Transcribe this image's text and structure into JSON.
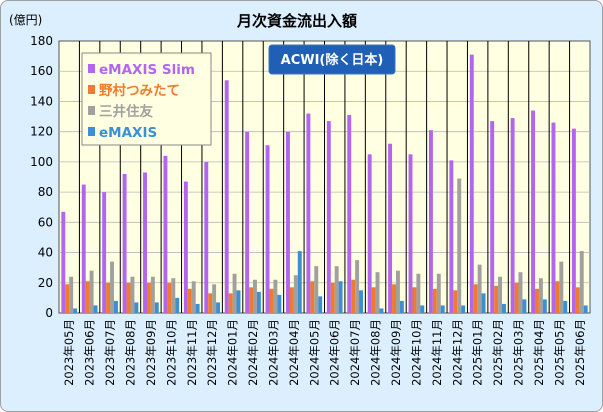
{
  "chart_data": {
    "type": "bar",
    "title": "月次資金流出入額",
    "unit_label": "(億円)",
    "annotation": "ACWI(除く日本)",
    "ylim": [
      0,
      180
    ],
    "yticks": [
      0,
      20,
      40,
      60,
      80,
      100,
      120,
      140,
      160,
      180
    ],
    "grid": true,
    "legend_position": "top-left",
    "categories": [
      "2023年05月",
      "2023年06月",
      "2023年07月",
      "2023年08月",
      "2023年09月",
      "2023年10月",
      "2023年11月",
      "2023年12月",
      "2024年01月",
      "2024年02月",
      "2024年03月",
      "2024年04月",
      "2024年05月",
      "2024年06月",
      "2024年07月",
      "2024年08月",
      "2024年09月",
      "2024年10月",
      "2024年11月",
      "2024年12月",
      "2025年01月",
      "2025年02月",
      "2025年03月",
      "2025年04月",
      "2025年05月",
      "2025年06月"
    ],
    "series": [
      {
        "name": "eMAXIS Slim",
        "color": "#b266ee",
        "values": [
          67,
          85,
          80,
          92,
          93,
          104,
          87,
          100,
          154,
          120,
          111,
          120,
          132,
          127,
          131,
          105,
          112,
          105,
          121,
          101,
          171,
          127,
          129,
          134,
          126,
          122
        ]
      },
      {
        "name": "野村つみたて",
        "color": "#f07a2e",
        "values": [
          19,
          21,
          20,
          20,
          20,
          20,
          16,
          13,
          13,
          17,
          16,
          17,
          21,
          20,
          22,
          17,
          19,
          17,
          16,
          15,
          19,
          18,
          20,
          16,
          21,
          17
        ]
      },
      {
        "name": "三井住友",
        "color": "#a0a0a0",
        "values": [
          24,
          28,
          34,
          24,
          24,
          23,
          21,
          19,
          26,
          22,
          22,
          25,
          31,
          31,
          35,
          27,
          28,
          26,
          26,
          89,
          32,
          24,
          27,
          23,
          34,
          41
        ]
      },
      {
        "name": "eMAXIS",
        "color": "#3b8fd4",
        "values": [
          3,
          5,
          8,
          7,
          7,
          10,
          6,
          7,
          15,
          14,
          12,
          41,
          11,
          21,
          15,
          3,
          8,
          5,
          5,
          5,
          13,
          6,
          9,
          9,
          8,
          5
        ]
      }
    ]
  }
}
